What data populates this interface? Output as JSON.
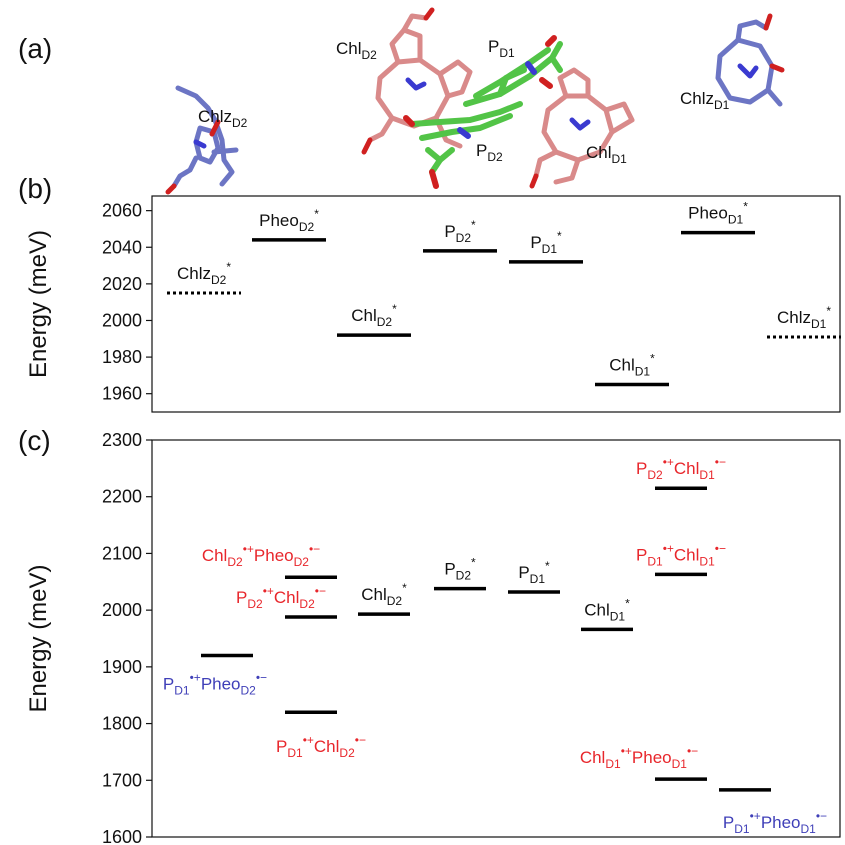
{
  "panel_labels": {
    "a": "(a)",
    "b": "(b)",
    "c": "(c)"
  },
  "structure_labels": {
    "chlz_d2": "ChlzD2",
    "chl_d2": "ChlD2",
    "p_d1": "PD1",
    "p_d2": "PD2",
    "chl_d1": "ChlD1",
    "chlz_d1": "ChlzD1"
  },
  "structure_colors": {
    "chlz": "#6c75c4",
    "chl": "#d98a8a",
    "p": "#52c447",
    "nitrogen": "#3a3ad0",
    "oxygen": "#d02020"
  },
  "label_colors": {
    "black": "#111111",
    "red": "#e8262b",
    "blue": "#3f3fb8"
  },
  "chart_data": [
    {
      "panel": "b",
      "type": "energy-level",
      "ylabel": "Energy (meV)",
      "ylim": [
        1950,
        2068
      ],
      "yticks": [
        1960,
        1980,
        2000,
        2020,
        2040,
        2060
      ],
      "grid": false,
      "levels": [
        {
          "label": "ChlzD2*",
          "energy": 2015,
          "position": 1,
          "style": "dotted",
          "color": "black"
        },
        {
          "label": "PheoD2*",
          "energy": 2044,
          "position": 2,
          "style": "solid",
          "color": "black"
        },
        {
          "label": "ChlD2*",
          "energy": 1992,
          "position": 3,
          "style": "solid",
          "color": "black"
        },
        {
          "label": "PD2*",
          "energy": 2038,
          "position": 4,
          "style": "solid",
          "color": "black"
        },
        {
          "label": "PD1*",
          "energy": 2032,
          "position": 5,
          "style": "solid",
          "color": "black"
        },
        {
          "label": "ChlD1*",
          "energy": 1965,
          "position": 6,
          "style": "solid",
          "color": "black"
        },
        {
          "label": "PheoD1*",
          "energy": 2048,
          "position": 7,
          "style": "solid",
          "color": "black"
        },
        {
          "label": "ChlzD1*",
          "energy": 1991,
          "position": 8,
          "style": "dotted",
          "color": "black"
        }
      ]
    },
    {
      "panel": "c",
      "type": "energy-level",
      "ylabel": "Energy (meV)",
      "ylim": [
        1600,
        2300
      ],
      "yticks": [
        1600,
        1700,
        1800,
        1900,
        2000,
        2100,
        2200,
        2300
      ],
      "grid": false,
      "levels": [
        {
          "label": "PD1•+PheoD2•−",
          "energy": 1920,
          "position": 1,
          "style": "solid",
          "color": "blue"
        },
        {
          "label": "ChlD2•+PheoD2•−",
          "energy": 2058,
          "position": 2,
          "style": "solid",
          "color": "red"
        },
        {
          "label": "PD2•+ChlD2•−",
          "energy": 1988,
          "position": 2,
          "style": "solid",
          "color": "red"
        },
        {
          "label": "PD1•+ChlD2•−",
          "energy": 1820,
          "position": 2,
          "style": "solid",
          "color": "red"
        },
        {
          "label": "ChlD2*",
          "energy": 1993,
          "position": 3,
          "style": "solid",
          "color": "black"
        },
        {
          "label": "PD2*",
          "energy": 2038,
          "position": 4,
          "style": "solid",
          "color": "black"
        },
        {
          "label": "PD1*",
          "energy": 2032,
          "position": 5,
          "style": "solid",
          "color": "black"
        },
        {
          "label": "ChlD1*",
          "energy": 1966,
          "position": 6,
          "style": "solid",
          "color": "black"
        },
        {
          "label": "PD2•+ChlD1•−",
          "energy": 2215,
          "position": 7,
          "style": "solid",
          "color": "red"
        },
        {
          "label": "PD1•+ChlD1•−",
          "energy": 2063,
          "position": 7,
          "style": "solid",
          "color": "red"
        },
        {
          "label": "ChlD1•+PheoD1•−",
          "energy": 1702,
          "position": 7,
          "style": "solid",
          "color": "red"
        },
        {
          "label": "PD1•+PheoD1•−",
          "energy": 1683,
          "position": 8,
          "style": "solid",
          "color": "blue"
        }
      ]
    }
  ]
}
